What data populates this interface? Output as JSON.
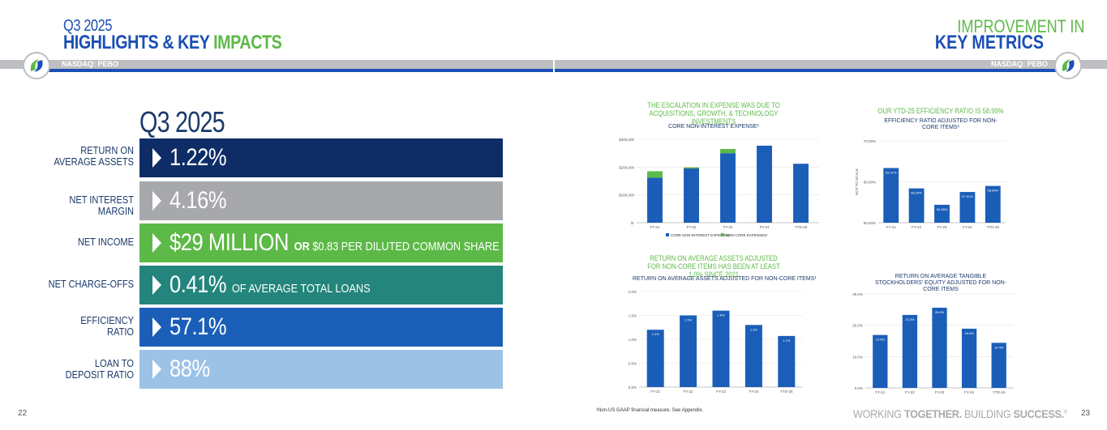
{
  "header": {
    "left_title_line1": "Q3 2025",
    "left_title_line2a": "HIGHLIGHTS & KEY ",
    "left_title_line2b": "IMPACTS",
    "right_title_line1": "IMPROVEMENT IN",
    "right_title_line2": "KEY METRICS",
    "ticker": "NASDAQ: PEBO"
  },
  "metrics": {
    "heading": "Q3 2025",
    "rows": [
      {
        "label": "RETURN ON AVERAGE ASSETS",
        "value": "1.22%",
        "suffix": "",
        "color": "#0e2d67"
      },
      {
        "label": "NET INTEREST MARGIN",
        "value": "4.16%",
        "suffix": "",
        "color": "#a6a8ab"
      },
      {
        "label": "NET INCOME",
        "value": "$29 MILLION",
        "suffix_bold": "OR",
        "suffix": "$0.83 PER DILUTED COMMON SHARE",
        "color": "#5db947"
      },
      {
        "label": "NET CHARGE-OFFS",
        "value": "0.41%",
        "suffix": "OF AVERAGE TOTAL LOANS",
        "color": "#23857c"
      },
      {
        "label": "EFFICIENCY RATIO",
        "value": "57.1%",
        "suffix": "",
        "color": "#1a5eb8"
      },
      {
        "label": "LOAN TO DEPOSIT RATIO",
        "value": "88%",
        "suffix": "",
        "color": "#9cc2e6"
      }
    ]
  },
  "footer": {
    "page_left": "22",
    "page_right": "23",
    "footnote": "¹Non-US GAAP financial measure. See Appendix.",
    "tagline_a": "WORKING ",
    "tagline_b": "TOGETHER.",
    "tagline_c": " BUILDING ",
    "tagline_d": "SUCCESS.",
    "tagline_mark": "®"
  },
  "chart_data": [
    {
      "type": "bar",
      "headline": "THE ESCALATION IN EXPENSE WAS DUE TO ACQUISITIONS, GROWTH, & TECHNOLOGY INVESTMENTS",
      "title": "CORE NON-INTEREST EXPENSE¹",
      "categories": [
        "FY-21",
        "FY-22",
        "FY-23",
        "FY-24",
        "YTD-25"
      ],
      "stacked": true,
      "series": [
        {
          "name": "CORE NON-INTEREST EXPENSES",
          "values": [
            162000,
            195000,
            250000,
            277000,
            212000
          ],
          "color": "#1a5eb8"
        },
        {
          "name": "NON-CORE EXPENSES¹",
          "values": [
            23000,
            4000,
            15000,
            0,
            0
          ],
          "color": "#5db947"
        }
      ],
      "yticks": [
        "$-",
        "$100,000",
        "$200,000",
        "$300,000"
      ],
      "ylim": [
        0,
        300000
      ]
    },
    {
      "type": "bar",
      "headline": "OUR YTD-25 EFFICIENCY RATIO IS 58.99%",
      "title": "EFFICIENCY RATIO ADJUSTED FOR NON-CORE ITEMS¹",
      "ylabel": "NOT TO SCALE",
      "categories": [
        "FY-21",
        "FY-22",
        "FY-23",
        "FY-24",
        "YTD-25"
      ],
      "values": [
        63.37,
        58.39,
        54.38,
        57.51,
        58.99
      ],
      "labels": [
        "63.37%",
        "58.39%",
        "54.38%",
        "57.51%",
        "58.99%"
      ],
      "yticks": [
        "50.00%",
        "60.00%",
        "70.00%"
      ],
      "ylim": [
        50,
        70
      ],
      "color": "#1a5eb8"
    },
    {
      "type": "bar",
      "headline": "RETURN ON AVERAGE ASSETS ADJUSTED FOR NON-CORE ITEMS HAS BEEN AT LEAST 1.0% SINCE 2021",
      "title": "RETURN ON AVERAGE ASSETS ADJUSTED FOR NON-CORE ITEMS¹",
      "categories": [
        "FY-21",
        "FY-22",
        "FY-23",
        "FY-24",
        "YTD-25"
      ],
      "values": [
        1.2,
        1.5,
        1.6,
        1.3,
        1.07
      ],
      "labels": [
        "1.2%",
        "1.5%",
        "1.6%",
        "1.3%",
        "1.1%"
      ],
      "yticks": [
        "0.0%",
        "0.5%",
        "1.0%",
        "1.5%",
        "2.0%"
      ],
      "ylim": [
        0,
        2
      ],
      "color": "#1a5eb8"
    },
    {
      "type": "bar",
      "headline": "",
      "title": "RETURN ON AVERAGE TANGIBLE STOCKHOLDERS' EQUITY ADJUSTED FOR NON-CORE ITEMS",
      "categories": [
        "FY-21",
        "FY-22",
        "FY-23",
        "FY-24",
        "YTD-25"
      ],
      "values": [
        16.9,
        23.3,
        25.6,
        18.9,
        14.4
      ],
      "labels": [
        "16.9%",
        "23.3%",
        "25.6%",
        "18.9%",
        "14.4%"
      ],
      "yticks": [
        "0.0%",
        "10.0%",
        "20.0%",
        "30.0%"
      ],
      "ylim": [
        0,
        30
      ],
      "color": "#1a5eb8"
    }
  ]
}
